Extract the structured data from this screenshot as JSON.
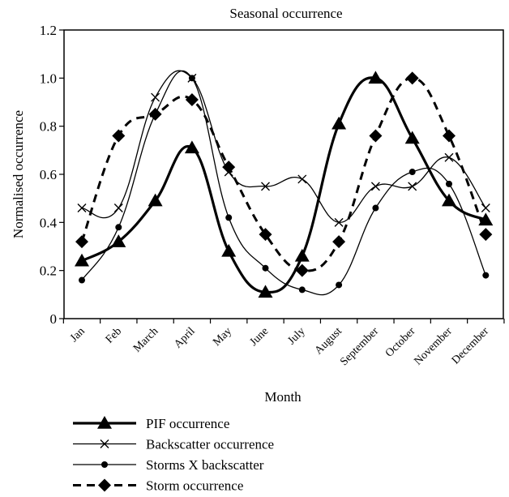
{
  "chart_data": {
    "type": "line",
    "title": "Seasonal occurrence",
    "xlabel": "Month",
    "ylabel": "Normalised occurrence",
    "ylim": [
      0,
      1.2
    ],
    "yticks": [
      "0",
      "0.2",
      "0.4",
      "0.6",
      "0.8",
      "1.0",
      "1.2"
    ],
    "categories": [
      "Jan",
      "Feb",
      "March",
      "April",
      "May",
      "June",
      "July",
      "August",
      "September",
      "October",
      "November",
      "December"
    ],
    "grid": false,
    "legend_position": "bottom",
    "series": [
      {
        "name": "PIF occurrence",
        "marker": "triangle",
        "line": "solid-thick",
        "values": [
          0.24,
          0.32,
          0.49,
          0.71,
          0.28,
          0.11,
          0.26,
          0.81,
          1.0,
          0.75,
          0.49,
          0.41
        ]
      },
      {
        "name": "Backscatter occurrence",
        "marker": "x",
        "line": "solid-thin",
        "values": [
          0.46,
          0.46,
          0.92,
          1.0,
          0.61,
          0.55,
          0.58,
          0.4,
          0.55,
          0.55,
          0.67,
          0.46
        ]
      },
      {
        "name": "Storms X backscatter",
        "marker": "circle",
        "line": "solid-thin",
        "values": [
          0.16,
          0.38,
          0.85,
          1.0,
          0.42,
          0.21,
          0.12,
          0.14,
          0.46,
          0.61,
          0.56,
          0.18
        ]
      },
      {
        "name": "Storm occurrence",
        "marker": "diamond",
        "line": "dashed",
        "values": [
          0.32,
          0.76,
          0.85,
          0.91,
          0.63,
          0.35,
          0.2,
          0.32,
          0.76,
          1.0,
          0.76,
          0.35
        ]
      }
    ]
  }
}
